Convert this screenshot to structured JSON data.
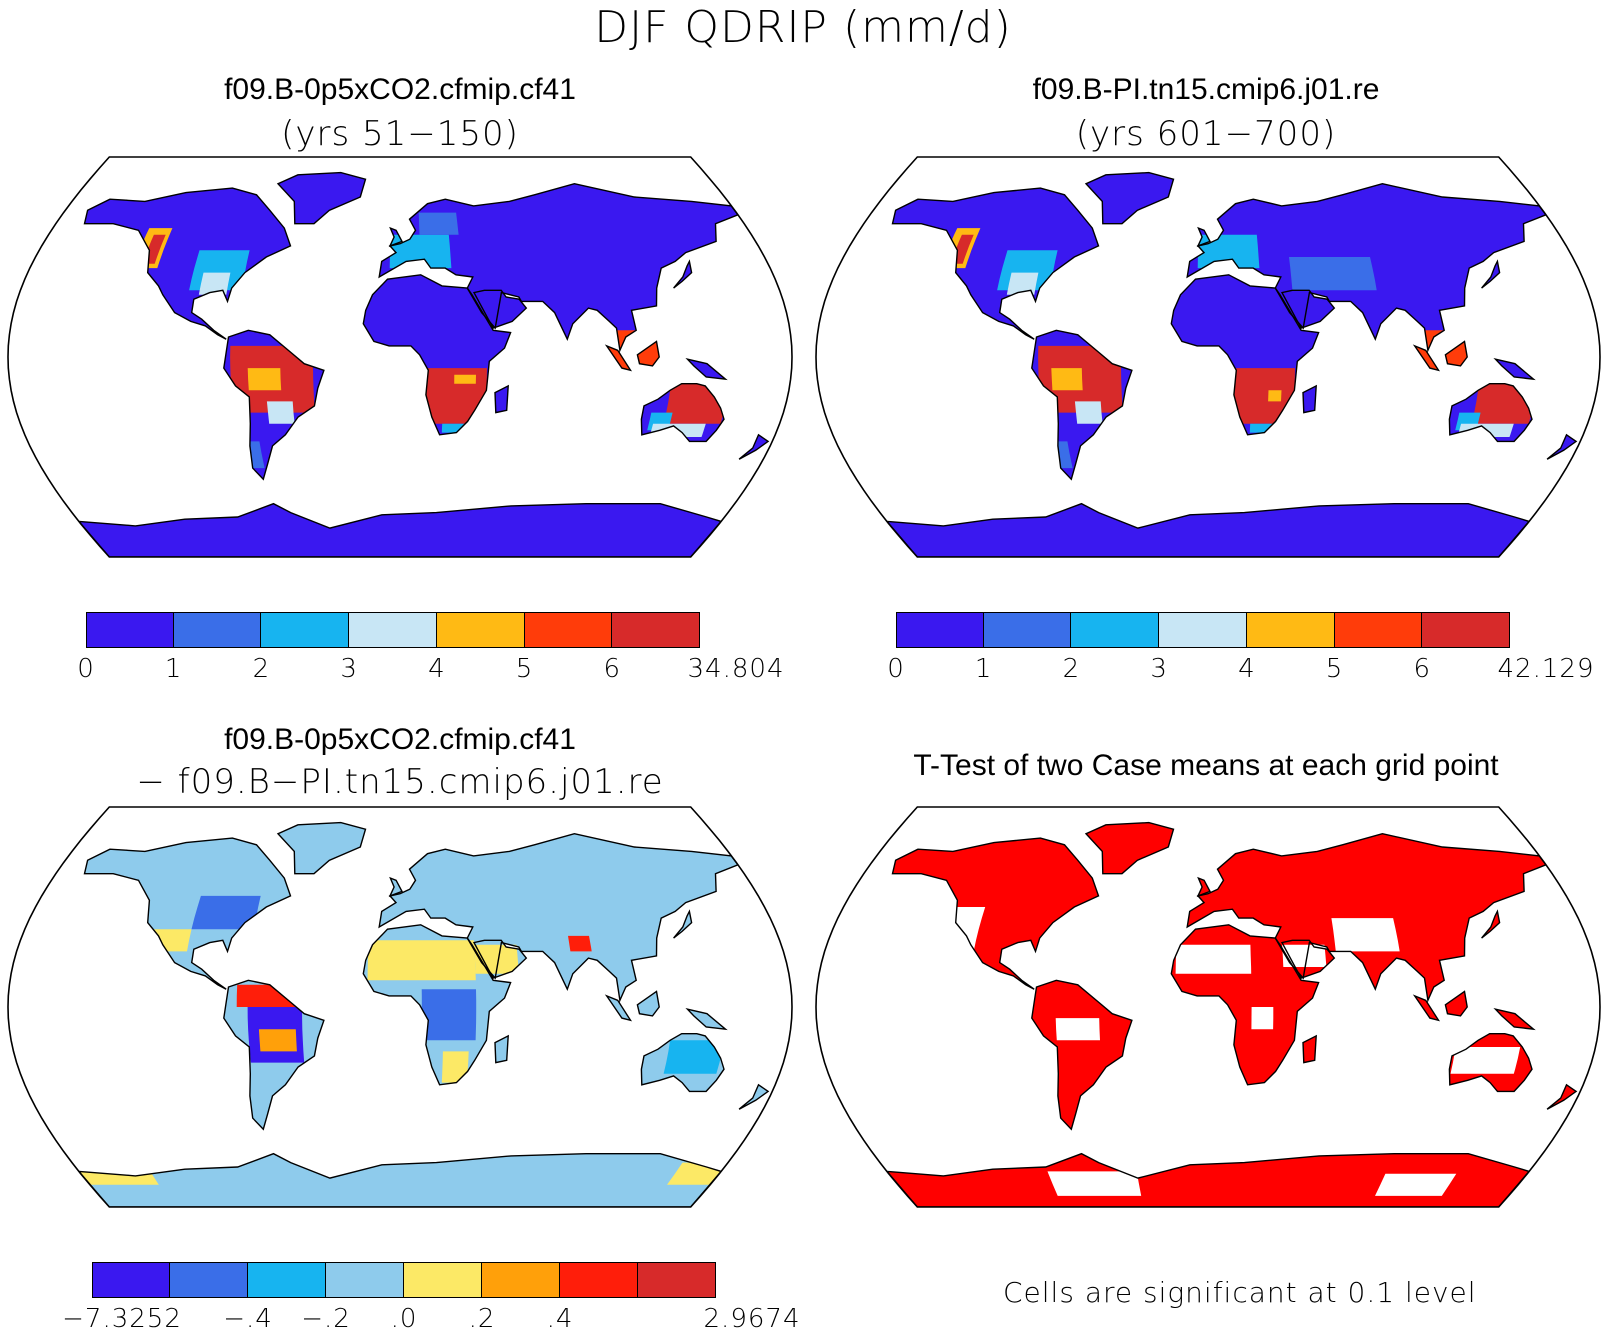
{
  "figure": {
    "title": "DJF QDRIP (mm/d)"
  },
  "panels": [
    {
      "title": "f09.B-0p5xCO2.cfmip.cf41",
      "subtitle": "(yrs 51−150)",
      "colorbar": {
        "colors": [
          "#3a18f0",
          "#3a6ee8",
          "#17b4f0",
          "#c8e6f5",
          "#ffba14",
          "#ff3c0a",
          "#d72a2a"
        ],
        "labels": [
          "0",
          "1",
          "2",
          "3",
          "4",
          "5",
          "6",
          "34.804"
        ]
      }
    },
    {
      "title": "f09.B-PI.tn15.cmip6.j01.re",
      "subtitle": "(yrs 601−700)",
      "colorbar": {
        "colors": [
          "#3a18f0",
          "#3a6ee8",
          "#17b4f0",
          "#c8e6f5",
          "#ffba14",
          "#ff3c0a",
          "#d72a2a"
        ],
        "labels": [
          "0",
          "1",
          "2",
          "3",
          "4",
          "5",
          "6",
          "42.129"
        ]
      }
    },
    {
      "title": "f09.B-0p5xCO2.cfmip.cf41",
      "subtitle": "− f09.B−PI.tn15.cmip6.j01.re",
      "colorbar": {
        "colors": [
          "#3a18f0",
          "#3a6ee8",
          "#17b4f0",
          "#8ecbec",
          "#fce966",
          "#ffa00a",
          "#ff1e0a",
          "#d72a2a"
        ],
        "labels": [
          "−7.3252",
          "",
          "−.4",
          "−.2",
          ".0",
          ".2",
          ".4",
          "",
          "2.9674"
        ]
      }
    },
    {
      "title": "T-Test of two Case means at each grid point",
      "note": "Cells are significant at 0.1 level",
      "colors": {
        "significant": "#ff0000"
      }
    }
  ]
}
